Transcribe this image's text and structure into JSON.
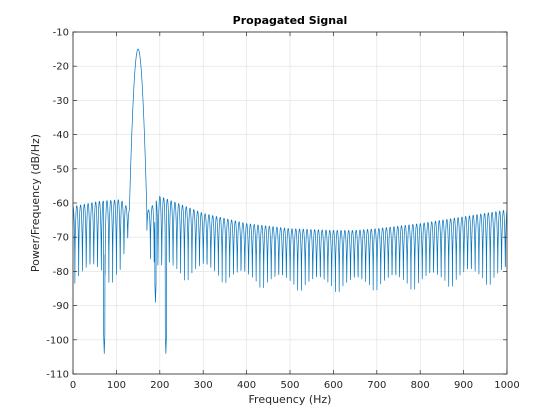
{
  "chart_data": {
    "type": "line",
    "title": "Propagated Signal",
    "xlabel": "Frequency (Hz)",
    "ylabel": "Power/Frequency (dB/Hz)",
    "xlim": [
      0,
      1000
    ],
    "ylim": [
      -110,
      -10
    ],
    "xticks": [
      0,
      100,
      200,
      300,
      400,
      500,
      600,
      700,
      800,
      900,
      1000
    ],
    "yticks": [
      -110,
      -100,
      -90,
      -80,
      -70,
      -60,
      -50,
      -40,
      -30,
      -20,
      -10
    ],
    "grid": true,
    "colors": {
      "series": "#0072bd",
      "grid": "#dfdfdf",
      "axis": "#262626"
    },
    "series": [
      {
        "main_lobe": {
          "center": 150,
          "peak": -15,
          "half_width": 20,
          "edge": -62
        },
        "sidelobe_spacing": 8.7,
        "envelope": {
          "x": [
            0,
            20,
            60,
            110,
            130,
            175,
            200,
            300,
            400,
            500,
            600,
            650,
            700,
            800,
            900,
            1000
          ],
          "peak": [
            -61,
            -60.5,
            -59.5,
            -59,
            -62,
            -62,
            -58,
            -63,
            -66,
            -67.5,
            -68,
            -68,
            -67.5,
            -66,
            -64,
            -62
          ],
          "trough": [
            -88,
            -88,
            -88,
            -88,
            -72,
            -78,
            -88,
            -86,
            -88,
            -89,
            -89.5,
            -89.5,
            -89,
            -89,
            -88,
            -88
          ]
        },
        "deep_nulls": [
          {
            "x": 72,
            "y": -104
          },
          {
            "x": 214,
            "y": -104
          },
          {
            "x": 190,
            "y": -89
          }
        ]
      }
    ]
  }
}
